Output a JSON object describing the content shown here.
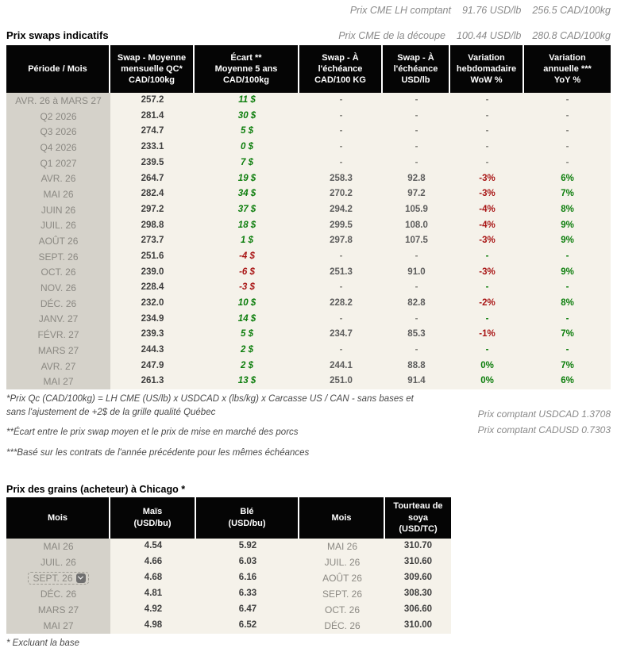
{
  "colors": {
    "green": "#0b7d0b",
    "red": "#a81414",
    "header_bg": "#050505",
    "body_bg": "#f5f2ea",
    "period_bg": "#d5d2ca"
  },
  "top": {
    "line1": {
      "label": "Prix CME LH comptant",
      "usd": "91.76 USD/lb",
      "cad": "256.5 CAD/100kg"
    },
    "line2": {
      "label": "Prix CME de la découpe",
      "usd": "100.44 USD/lb",
      "cad": "280.8 CAD/100kg"
    }
  },
  "swap_table": {
    "title": "Prix swaps indicatifs",
    "headers": [
      "Période / Mois",
      "Swap - Moyenne\nmensuelle QC*\nCAD/100kg",
      "Écart **\nMoyenne 5 ans\nCAD/100kg",
      "Swap - À\nl'échéance\nCAD/100 KG",
      "Swap - À\nl'échéance\nUSD/lb",
      "Variation\nhebdomadaire\nWoW %",
      "Variation\nannuelle ***\nYoY %"
    ],
    "rows": [
      [
        {
          "t": "AVR. 26 à  MARS 27",
          "c": "c-period"
        },
        {
          "t": "257.2",
          "c": "c-bold"
        },
        {
          "t": "11 $",
          "c": "c-green"
        },
        {
          "t": "-",
          "c": "c-dash"
        },
        {
          "t": "-",
          "c": "c-dash"
        },
        {
          "t": "-",
          "c": "c-dash"
        },
        {
          "t": "-",
          "c": "c-dash"
        }
      ],
      [
        {
          "t": "Q2 2026",
          "c": "c-period"
        },
        {
          "t": "281.4",
          "c": "c-bold"
        },
        {
          "t": "30 $",
          "c": "c-green"
        },
        {
          "t": "-",
          "c": "c-dash"
        },
        {
          "t": "-",
          "c": "c-dash"
        },
        {
          "t": "-",
          "c": "c-dash"
        },
        {
          "t": "-",
          "c": "c-dash"
        }
      ],
      [
        {
          "t": "Q3 2026",
          "c": "c-period"
        },
        {
          "t": "274.7",
          "c": "c-bold"
        },
        {
          "t": "5 $",
          "c": "c-green"
        },
        {
          "t": "-",
          "c": "c-dash"
        },
        {
          "t": "-",
          "c": "c-dash"
        },
        {
          "t": "-",
          "c": "c-dash"
        },
        {
          "t": "-",
          "c": "c-dash"
        }
      ],
      [
        {
          "t": "Q4 2026",
          "c": "c-period"
        },
        {
          "t": "233.1",
          "c": "c-bold"
        },
        {
          "t": "0 $",
          "c": "c-green"
        },
        {
          "t": "-",
          "c": "c-dash"
        },
        {
          "t": "-",
          "c": "c-dash"
        },
        {
          "t": "-",
          "c": "c-dash"
        },
        {
          "t": "-",
          "c": "c-dash"
        }
      ],
      [
        {
          "t": "Q1 2027",
          "c": "c-period"
        },
        {
          "t": "239.5",
          "c": "c-bold"
        },
        {
          "t": "7 $",
          "c": "c-green"
        },
        {
          "t": "-",
          "c": "c-dash"
        },
        {
          "t": "-",
          "c": "c-dash"
        },
        {
          "t": "-",
          "c": "c-dash"
        },
        {
          "t": "-",
          "c": "c-dash"
        }
      ],
      [
        {
          "t": "AVR. 26",
          "c": "c-period"
        },
        {
          "t": "264.7",
          "c": "c-bold"
        },
        {
          "t": "19 $",
          "c": "c-green"
        },
        {
          "t": "258.3",
          "c": "c-num"
        },
        {
          "t": "92.8",
          "c": "c-num"
        },
        {
          "t": "-3%",
          "c": "c-pct-red"
        },
        {
          "t": "6%",
          "c": "c-pct-green"
        }
      ],
      [
        {
          "t": "MAI 26",
          "c": "c-period"
        },
        {
          "t": "282.4",
          "c": "c-bold"
        },
        {
          "t": "34 $",
          "c": "c-green"
        },
        {
          "t": "270.2",
          "c": "c-num"
        },
        {
          "t": "97.2",
          "c": "c-num"
        },
        {
          "t": "-3%",
          "c": "c-pct-red"
        },
        {
          "t": "7%",
          "c": "c-pct-green"
        }
      ],
      [
        {
          "t": "JUIN 26",
          "c": "c-period"
        },
        {
          "t": "297.2",
          "c": "c-bold"
        },
        {
          "t": "37 $",
          "c": "c-green"
        },
        {
          "t": "294.2",
          "c": "c-num"
        },
        {
          "t": "105.9",
          "c": "c-num"
        },
        {
          "t": "-4%",
          "c": "c-pct-red"
        },
        {
          "t": "8%",
          "c": "c-pct-green"
        }
      ],
      [
        {
          "t": "JUIL. 26",
          "c": "c-period"
        },
        {
          "t": "298.8",
          "c": "c-bold"
        },
        {
          "t": "18 $",
          "c": "c-green"
        },
        {
          "t": "299.5",
          "c": "c-num"
        },
        {
          "t": "108.0",
          "c": "c-num"
        },
        {
          "t": "-4%",
          "c": "c-pct-red"
        },
        {
          "t": "9%",
          "c": "c-pct-green"
        }
      ],
      [
        {
          "t": "AOÛT 26",
          "c": "c-period"
        },
        {
          "t": "273.7",
          "c": "c-bold"
        },
        {
          "t": "1 $",
          "c": "c-green"
        },
        {
          "t": "297.8",
          "c": "c-num"
        },
        {
          "t": "107.5",
          "c": "c-num"
        },
        {
          "t": "-3%",
          "c": "c-pct-red"
        },
        {
          "t": "9%",
          "c": "c-pct-green"
        }
      ],
      [
        {
          "t": "SEPT. 26",
          "c": "c-period"
        },
        {
          "t": "251.6",
          "c": "c-bold"
        },
        {
          "t": "-4 $",
          "c": "c-red"
        },
        {
          "t": "-",
          "c": "c-dash"
        },
        {
          "t": "-",
          "c": "c-dash"
        },
        {
          "t": "-",
          "c": "c-dash-green"
        },
        {
          "t": "-",
          "c": "c-dash-green"
        }
      ],
      [
        {
          "t": "OCT. 26",
          "c": "c-period"
        },
        {
          "t": "239.0",
          "c": "c-bold"
        },
        {
          "t": "-6 $",
          "c": "c-red"
        },
        {
          "t": "251.3",
          "c": "c-num"
        },
        {
          "t": "91.0",
          "c": "c-num"
        },
        {
          "t": "-3%",
          "c": "c-pct-red"
        },
        {
          "t": "9%",
          "c": "c-pct-green"
        }
      ],
      [
        {
          "t": "NOV. 26",
          "c": "c-period"
        },
        {
          "t": "228.4",
          "c": "c-bold"
        },
        {
          "t": "-3 $",
          "c": "c-red"
        },
        {
          "t": "-",
          "c": "c-dash"
        },
        {
          "t": "-",
          "c": "c-dash"
        },
        {
          "t": "-",
          "c": "c-dash-green"
        },
        {
          "t": "-",
          "c": "c-dash-green"
        }
      ],
      [
        {
          "t": "DÉC. 26",
          "c": "c-period"
        },
        {
          "t": "232.0",
          "c": "c-bold"
        },
        {
          "t": "10 $",
          "c": "c-green"
        },
        {
          "t": "228.2",
          "c": "c-num"
        },
        {
          "t": "82.8",
          "c": "c-num"
        },
        {
          "t": "-2%",
          "c": "c-pct-red"
        },
        {
          "t": "8%",
          "c": "c-pct-green"
        }
      ],
      [
        {
          "t": "JANV. 27",
          "c": "c-period"
        },
        {
          "t": "234.9",
          "c": "c-bold"
        },
        {
          "t": "14 $",
          "c": "c-green"
        },
        {
          "t": "-",
          "c": "c-dash"
        },
        {
          "t": "-",
          "c": "c-dash"
        },
        {
          "t": "-",
          "c": "c-dash-green"
        },
        {
          "t": "-",
          "c": "c-dash-green"
        }
      ],
      [
        {
          "t": "FÉVR. 27",
          "c": "c-period"
        },
        {
          "t": "239.3",
          "c": "c-bold"
        },
        {
          "t": "5 $",
          "c": "c-green"
        },
        {
          "t": "234.7",
          "c": "c-num"
        },
        {
          "t": "85.3",
          "c": "c-num"
        },
        {
          "t": "-1%",
          "c": "c-pct-red"
        },
        {
          "t": "7%",
          "c": "c-pct-green"
        }
      ],
      [
        {
          "t": "MARS 27",
          "c": "c-period"
        },
        {
          "t": "244.3",
          "c": "c-bold"
        },
        {
          "t": "2 $",
          "c": "c-green"
        },
        {
          "t": "-",
          "c": "c-dash"
        },
        {
          "t": "-",
          "c": "c-dash"
        },
        {
          "t": "-",
          "c": "c-dash-green"
        },
        {
          "t": "-",
          "c": "c-dash-green"
        }
      ],
      [
        {
          "t": "AVR. 27",
          "c": "c-period"
        },
        {
          "t": "247.9",
          "c": "c-bold"
        },
        {
          "t": "2 $",
          "c": "c-green"
        },
        {
          "t": "244.1",
          "c": "c-num"
        },
        {
          "t": "88.8",
          "c": "c-num"
        },
        {
          "t": "0%",
          "c": "c-pct-green"
        },
        {
          "t": "7%",
          "c": "c-pct-green"
        }
      ],
      [
        {
          "t": "MAI 27",
          "c": "c-period"
        },
        {
          "t": "261.3",
          "c": "c-bold"
        },
        {
          "t": "13 $",
          "c": "c-green"
        },
        {
          "t": "251.0",
          "c": "c-num"
        },
        {
          "t": "91.4",
          "c": "c-num"
        },
        {
          "t": "0%",
          "c": "c-pct-green"
        },
        {
          "t": "6%",
          "c": "c-pct-green"
        }
      ]
    ],
    "footnotes": [
      "*Prix Qc (CAD/100kg) = LH CME (US/lb) x USDCAD x (lbs/kg) x Carcasse US / CAN - sans bases et sans l'ajustement de +2$ de la grille qualité Québec",
      "**Écart entre le prix swap moyen et le prix de mise en marché des porcs",
      "***Basé sur les contrats de l'année précédente pour les mêmes échéances"
    ],
    "spot_rates": [
      "Prix comptant USDCAD 1.3708",
      "Prix comptant CADUSD 0.7303"
    ]
  },
  "grain_table": {
    "title": "Prix des grains (acheteur) à Chicago *",
    "headers": [
      "Mois",
      "Maïs\n(USD/bu)",
      "Blé\n(USD/bu)",
      "Mois",
      "Tourteau de\nsoya\n(USD/TC)"
    ],
    "rows": [
      [
        {
          "t": "MAI 26",
          "c": "c-period"
        },
        {
          "t": "4.54",
          "c": "c-bold"
        },
        {
          "t": "5.92",
          "c": "c-bold"
        },
        {
          "t": "MAI 26",
          "c": "c-month"
        },
        {
          "t": "310.70",
          "c": "c-bold"
        }
      ],
      [
        {
          "t": "JUIL. 26",
          "c": "c-period"
        },
        {
          "t": "4.66",
          "c": "c-bold"
        },
        {
          "t": "6.03",
          "c": "c-bold"
        },
        {
          "t": "JUIL. 26",
          "c": "c-month"
        },
        {
          "t": "310.60",
          "c": "c-bold"
        }
      ],
      [
        {
          "t": "SEPT. 26",
          "c": "c-period",
          "dd": true
        },
        {
          "t": "4.68",
          "c": "c-bold"
        },
        {
          "t": "6.16",
          "c": "c-bold"
        },
        {
          "t": "AOÛT 26",
          "c": "c-month"
        },
        {
          "t": "309.60",
          "c": "c-bold"
        }
      ],
      [
        {
          "t": "DÉC. 26",
          "c": "c-period"
        },
        {
          "t": "4.81",
          "c": "c-bold"
        },
        {
          "t": "6.33",
          "c": "c-bold"
        },
        {
          "t": "SEPT. 26",
          "c": "c-month"
        },
        {
          "t": "308.30",
          "c": "c-bold"
        }
      ],
      [
        {
          "t": "MARS 27",
          "c": "c-period"
        },
        {
          "t": "4.92",
          "c": "c-bold"
        },
        {
          "t": "6.47",
          "c": "c-bold"
        },
        {
          "t": "OCT. 26",
          "c": "c-month"
        },
        {
          "t": "306.60",
          "c": "c-bold"
        }
      ],
      [
        {
          "t": "MAI 27",
          "c": "c-period"
        },
        {
          "t": "4.98",
          "c": "c-bold"
        },
        {
          "t": "6.52",
          "c": "c-bold"
        },
        {
          "t": "DÉC. 26",
          "c": "c-month"
        },
        {
          "t": "310.00",
          "c": "c-bold"
        }
      ]
    ],
    "footnote": "* Excluant la base"
  }
}
